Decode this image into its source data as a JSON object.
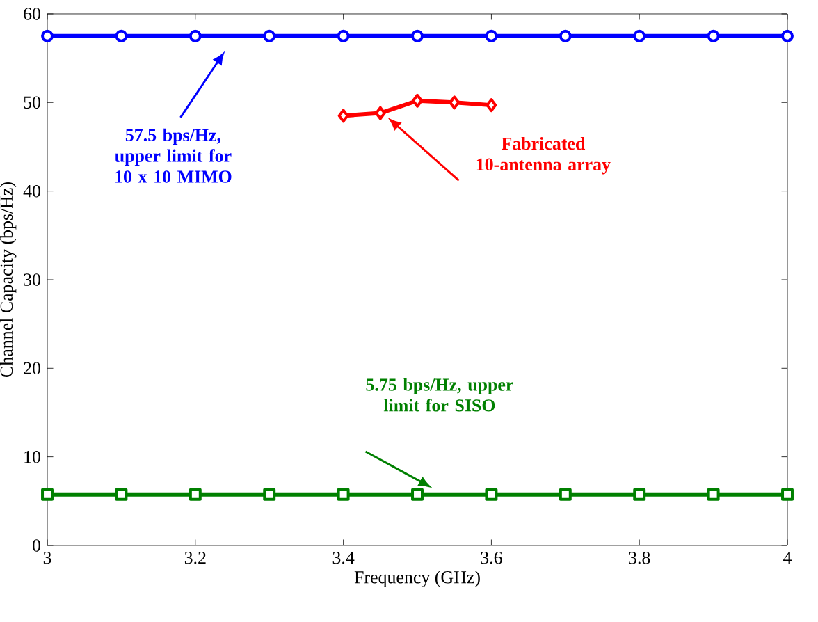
{
  "chart_data": {
    "type": "line",
    "xlabel": "Frequency (GHz)",
    "ylabel": "Channel Capacity (bps/Hz)",
    "xlim": [
      3,
      4
    ],
    "ylim": [
      0,
      60
    ],
    "xticks": [
      3,
      3.2,
      3.4,
      3.6,
      3.8,
      4
    ],
    "yticks": [
      0,
      10,
      20,
      30,
      40,
      50,
      60
    ],
    "grid": false,
    "line_style": "solid",
    "series": [
      {
        "color": "#0000ff",
        "marker": "circle",
        "x": [
          3,
          3.1,
          3.2,
          3.3,
          3.4,
          3.5,
          3.6,
          3.7,
          3.8,
          3.9,
          4
        ],
        "values": [
          57.5,
          57.5,
          57.5,
          57.5,
          57.5,
          57.5,
          57.5,
          57.5,
          57.5,
          57.5,
          57.5
        ]
      },
      {
        "color": "#ff0000",
        "marker": "diamond",
        "x": [
          3.4,
          3.45,
          3.5,
          3.55,
          3.6
        ],
        "values": [
          48.5,
          48.8,
          50.2,
          50.0,
          49.7
        ]
      },
      {
        "color": "#008000",
        "marker": "square",
        "x": [
          3,
          3.1,
          3.2,
          3.3,
          3.4,
          3.5,
          3.6,
          3.7,
          3.8,
          3.9,
          4
        ],
        "values": [
          5.75,
          5.75,
          5.75,
          5.75,
          5.75,
          5.75,
          5.75,
          5.75,
          5.75,
          5.75,
          5.75
        ]
      }
    ],
    "annotations": [
      "57.5 bps/Hz, upper limit for 10 x 10 MIMO",
      "Fabricated 10-antenna array",
      "5.75 bps/Hz, upper limit for SISO"
    ]
  }
}
